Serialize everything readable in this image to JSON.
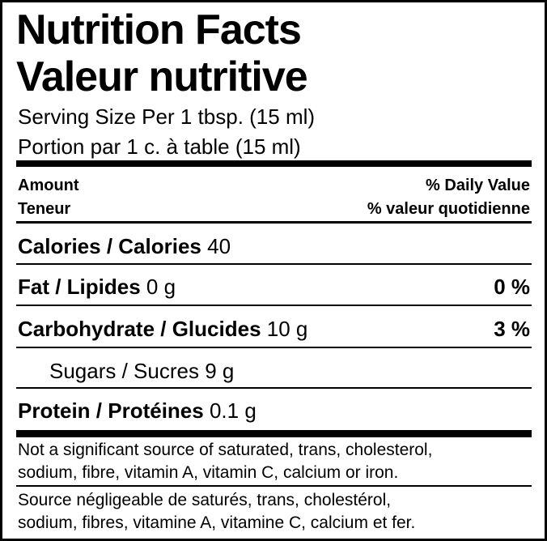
{
  "title": [
    "Nutrition Facts",
    "Valeur nutritive"
  ],
  "serving": [
    "Serving Size Per 1 tbsp. (15 ml)",
    "Portion par 1 c. à table (15 ml)"
  ],
  "header": {
    "left": [
      "Amount",
      "Teneur"
    ],
    "right": [
      "% Daily Value",
      "% valeur quotidienne"
    ]
  },
  "rows": [
    {
      "name": "Calories / Calories",
      "amount": "40"
    },
    {
      "name": "Fat / Lipides",
      "amount": "0 g",
      "dv": "0 %"
    },
    {
      "name": "Carbohydrate / Glucides",
      "amount": "10 g",
      "dv": "3 %"
    },
    {
      "name": "Sugars / Sucres",
      "amount": "9 g"
    },
    {
      "name": "Protein / Protéines",
      "amount": "0.1 g"
    }
  ],
  "footnotes": [
    [
      "Not a significant source of saturated, trans, cholesterol,",
      "sodium, fibre, vitamin A, vitamin C, calcium or iron."
    ],
    [
      "Source négligeable de saturés, trans, cholestérol,",
      "sodium, fibres, vitamine A, vitamine C, calcium et fer."
    ]
  ]
}
